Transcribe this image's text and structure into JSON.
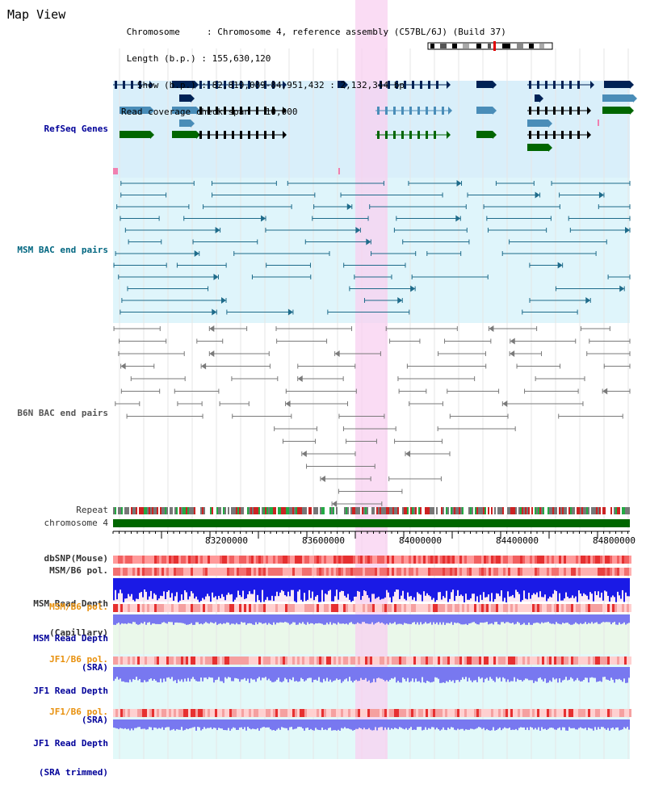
{
  "header": {
    "title": "Map View",
    "info_lines": [
      " Chromosome     : Chromosome 4, reference assembly (C57BL/6J) (Build 37)",
      " Length (b.p.) : 155,630,120",
      "   Show (b.p.) : 82,819,089-84,951,432 : 2,132,344 bp",
      "Read coverage check span : 10,000"
    ]
  },
  "tracks": {
    "refseq": "RefSeq Genes",
    "msm_bac": "MSM BAC end pairs",
    "b6n_bac": "B6N BAC end pairs",
    "repeat": "Repeat",
    "chromosome": "chromosome 4",
    "dbsnp": "dbSNP(Mouse)",
    "msm_b6_pol_1": "MSM/B6 pol.",
    "msm_depth_cap_1": "MSM Read Depth",
    "msm_depth_cap_2": "(Capillary)",
    "msm_b6_pol_2": "MSM/B6 pol.",
    "msm_depth_sra_1": "MSM Read Depth",
    "msm_depth_sra_2": "(SRA)",
    "jf1_b6_pol_1": "JF1/B6 pol.",
    "jf1_depth_sra_1": "JF1 Read Depth",
    "jf1_depth_sra_2": "(SRA)",
    "jf1_b6_pol_2": "JF1/B6 pol.",
    "jf1_depth_trim_1": "JF1 Read Depth",
    "jf1_depth_trim_2": "(SRA trimmed)"
  },
  "ruler": {
    "ticks": [
      "83200000",
      "83600000",
      "84000000",
      "84400000",
      "84800000"
    ]
  },
  "colors": {
    "highlight": "#f8d0f0",
    "refseq_bg": "#d9effa",
    "msm_bg": "#dff5fb",
    "gene_navy": "#002255",
    "gene_steel": "#4a8db8",
    "gene_green": "#006600",
    "msm_line": "#1e6b8a",
    "b6n_line": "#7a7a7a",
    "chromosome_bar": "#006600",
    "snp_red": "#e04040",
    "depth_blue": "#1a1ae6",
    "depth_light": "#7878f0"
  }
}
